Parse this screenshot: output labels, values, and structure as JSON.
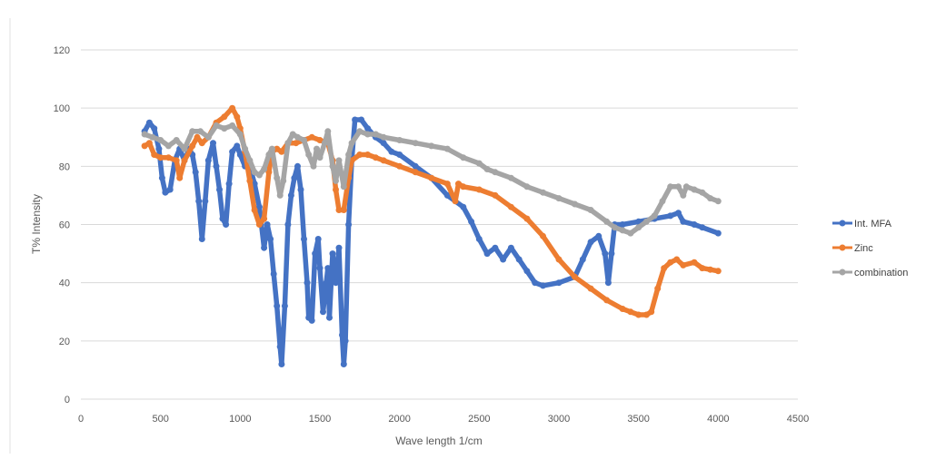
{
  "chart_data": {
    "type": "line",
    "title": "",
    "xlabel": "Wave length 1/cm",
    "ylabel": "T% Intensity",
    "xlim": [
      0,
      4500
    ],
    "ylim": [
      0,
      120
    ],
    "xticks": [
      0,
      500,
      1000,
      1500,
      2000,
      2500,
      3000,
      3500,
      4000,
      4500
    ],
    "yticks": [
      0,
      20,
      40,
      60,
      80,
      100,
      120
    ],
    "grid": "horizontal",
    "legend": "right",
    "series": [
      {
        "name": "Int. MFA",
        "color": "#4472c4",
        "points": [
          [
            400,
            92
          ],
          [
            430,
            95
          ],
          [
            460,
            93
          ],
          [
            490,
            86
          ],
          [
            510,
            76
          ],
          [
            530,
            71
          ],
          [
            560,
            72
          ],
          [
            590,
            82
          ],
          [
            620,
            86
          ],
          [
            650,
            82
          ],
          [
            680,
            86
          ],
          [
            700,
            84
          ],
          [
            720,
            78
          ],
          [
            740,
            68
          ],
          [
            760,
            55
          ],
          [
            780,
            68
          ],
          [
            800,
            82
          ],
          [
            830,
            88
          ],
          [
            850,
            80
          ],
          [
            870,
            72
          ],
          [
            890,
            62
          ],
          [
            910,
            60
          ],
          [
            930,
            74
          ],
          [
            950,
            85
          ],
          [
            980,
            87
          ],
          [
            1000,
            84
          ],
          [
            1030,
            80
          ],
          [
            1060,
            80
          ],
          [
            1090,
            74
          ],
          [
            1120,
            66
          ],
          [
            1150,
            52
          ],
          [
            1170,
            60
          ],
          [
            1190,
            55
          ],
          [
            1210,
            43
          ],
          [
            1230,
            32
          ],
          [
            1250,
            18
          ],
          [
            1260,
            12
          ],
          [
            1280,
            32
          ],
          [
            1300,
            60
          ],
          [
            1320,
            70
          ],
          [
            1340,
            76
          ],
          [
            1360,
            80
          ],
          [
            1380,
            72
          ],
          [
            1400,
            55
          ],
          [
            1420,
            40
          ],
          [
            1430,
            28
          ],
          [
            1450,
            27
          ],
          [
            1470,
            50
          ],
          [
            1490,
            55
          ],
          [
            1500,
            45
          ],
          [
            1520,
            30
          ],
          [
            1540,
            40
          ],
          [
            1550,
            45
          ],
          [
            1560,
            28
          ],
          [
            1580,
            50
          ],
          [
            1600,
            40
          ],
          [
            1620,
            52
          ],
          [
            1640,
            22
          ],
          [
            1650,
            12
          ],
          [
            1660,
            20
          ],
          [
            1680,
            60
          ],
          [
            1700,
            82
          ],
          [
            1720,
            96
          ],
          [
            1760,
            96
          ],
          [
            1800,
            93
          ],
          [
            1850,
            90
          ],
          [
            1900,
            88
          ],
          [
            1950,
            85
          ],
          [
            2000,
            84
          ],
          [
            2100,
            80
          ],
          [
            2200,
            76
          ],
          [
            2300,
            70
          ],
          [
            2400,
            66
          ],
          [
            2450,
            61
          ],
          [
            2500,
            55
          ],
          [
            2550,
            50
          ],
          [
            2600,
            52
          ],
          [
            2650,
            48
          ],
          [
            2700,
            52
          ],
          [
            2750,
            48
          ],
          [
            2800,
            44
          ],
          [
            2850,
            40
          ],
          [
            2900,
            39
          ],
          [
            3000,
            40
          ],
          [
            3100,
            42
          ],
          [
            3150,
            48
          ],
          [
            3200,
            54
          ],
          [
            3250,
            56
          ],
          [
            3290,
            50
          ],
          [
            3310,
            40
          ],
          [
            3330,
            50
          ],
          [
            3350,
            60
          ],
          [
            3400,
            60
          ],
          [
            3500,
            61
          ],
          [
            3600,
            62
          ],
          [
            3700,
            63
          ],
          [
            3750,
            64
          ],
          [
            3780,
            61
          ],
          [
            3850,
            60
          ],
          [
            3900,
            59
          ],
          [
            4000,
            57
          ]
        ]
      },
      {
        "name": "Zinc",
        "color": "#ed7d31",
        "points": [
          [
            400,
            87
          ],
          [
            430,
            88
          ],
          [
            460,
            84
          ],
          [
            500,
            83
          ],
          [
            550,
            83
          ],
          [
            600,
            82
          ],
          [
            620,
            76
          ],
          [
            650,
            82
          ],
          [
            700,
            87
          ],
          [
            730,
            90
          ],
          [
            760,
            88
          ],
          [
            800,
            90
          ],
          [
            850,
            95
          ],
          [
            900,
            97
          ],
          [
            950,
            100
          ],
          [
            980,
            97
          ],
          [
            1000,
            93
          ],
          [
            1030,
            85
          ],
          [
            1060,
            75
          ],
          [
            1090,
            65
          ],
          [
            1120,
            60
          ],
          [
            1150,
            62
          ],
          [
            1180,
            78
          ],
          [
            1200,
            85
          ],
          [
            1230,
            86
          ],
          [
            1260,
            85
          ],
          [
            1300,
            88
          ],
          [
            1350,
            88
          ],
          [
            1400,
            89
          ],
          [
            1450,
            90
          ],
          [
            1500,
            89
          ],
          [
            1550,
            88
          ],
          [
            1580,
            82
          ],
          [
            1600,
            72
          ],
          [
            1620,
            65
          ],
          [
            1650,
            65
          ],
          [
            1680,
            76
          ],
          [
            1700,
            82
          ],
          [
            1750,
            84
          ],
          [
            1800,
            84
          ],
          [
            1850,
            83
          ],
          [
            1900,
            82
          ],
          [
            2000,
            80
          ],
          [
            2100,
            78
          ],
          [
            2200,
            76
          ],
          [
            2300,
            74
          ],
          [
            2350,
            68
          ],
          [
            2370,
            74
          ],
          [
            2400,
            73
          ],
          [
            2500,
            72
          ],
          [
            2600,
            70
          ],
          [
            2700,
            66
          ],
          [
            2800,
            62
          ],
          [
            2900,
            56
          ],
          [
            3000,
            48
          ],
          [
            3100,
            42
          ],
          [
            3200,
            38
          ],
          [
            3300,
            34
          ],
          [
            3400,
            31
          ],
          [
            3450,
            30
          ],
          [
            3500,
            29
          ],
          [
            3550,
            29
          ],
          [
            3580,
            30
          ],
          [
            3620,
            38
          ],
          [
            3660,
            45
          ],
          [
            3700,
            47
          ],
          [
            3740,
            48
          ],
          [
            3780,
            46
          ],
          [
            3850,
            47
          ],
          [
            3900,
            45
          ],
          [
            3950,
            44.5
          ],
          [
            4000,
            44
          ]
        ]
      },
      {
        "name": "combination",
        "color": "#a5a5a5",
        "points": [
          [
            400,
            91
          ],
          [
            450,
            90
          ],
          [
            500,
            89
          ],
          [
            550,
            87
          ],
          [
            600,
            89
          ],
          [
            650,
            86
          ],
          [
            700,
            92
          ],
          [
            750,
            92
          ],
          [
            800,
            90
          ],
          [
            850,
            94
          ],
          [
            900,
            93
          ],
          [
            950,
            94
          ],
          [
            1000,
            91
          ],
          [
            1030,
            86
          ],
          [
            1060,
            82
          ],
          [
            1090,
            78
          ],
          [
            1120,
            77
          ],
          [
            1150,
            79
          ],
          [
            1180,
            84
          ],
          [
            1200,
            86
          ],
          [
            1230,
            76
          ],
          [
            1250,
            70
          ],
          [
            1270,
            75
          ],
          [
            1300,
            88
          ],
          [
            1330,
            91
          ],
          [
            1360,
            90
          ],
          [
            1400,
            89
          ],
          [
            1430,
            84
          ],
          [
            1460,
            80
          ],
          [
            1480,
            86
          ],
          [
            1500,
            83
          ],
          [
            1530,
            88
          ],
          [
            1550,
            92
          ],
          [
            1580,
            80
          ],
          [
            1600,
            75
          ],
          [
            1620,
            82
          ],
          [
            1650,
            73
          ],
          [
            1680,
            84
          ],
          [
            1700,
            88
          ],
          [
            1750,
            92
          ],
          [
            1800,
            91
          ],
          [
            1850,
            91
          ],
          [
            1900,
            90
          ],
          [
            2000,
            89
          ],
          [
            2100,
            88
          ],
          [
            2200,
            87
          ],
          [
            2300,
            86
          ],
          [
            2400,
            83
          ],
          [
            2500,
            81
          ],
          [
            2550,
            79
          ],
          [
            2600,
            78
          ],
          [
            2700,
            76
          ],
          [
            2800,
            73
          ],
          [
            2900,
            71
          ],
          [
            3000,
            69
          ],
          [
            3100,
            67
          ],
          [
            3200,
            65
          ],
          [
            3300,
            61
          ],
          [
            3350,
            59
          ],
          [
            3400,
            58
          ],
          [
            3450,
            57
          ],
          [
            3500,
            59
          ],
          [
            3550,
            61
          ],
          [
            3600,
            63
          ],
          [
            3650,
            68
          ],
          [
            3700,
            73
          ],
          [
            3750,
            73
          ],
          [
            3780,
            70
          ],
          [
            3800,
            73
          ],
          [
            3850,
            72
          ],
          [
            3900,
            71
          ],
          [
            3950,
            69
          ],
          [
            4000,
            68
          ]
        ]
      }
    ]
  }
}
